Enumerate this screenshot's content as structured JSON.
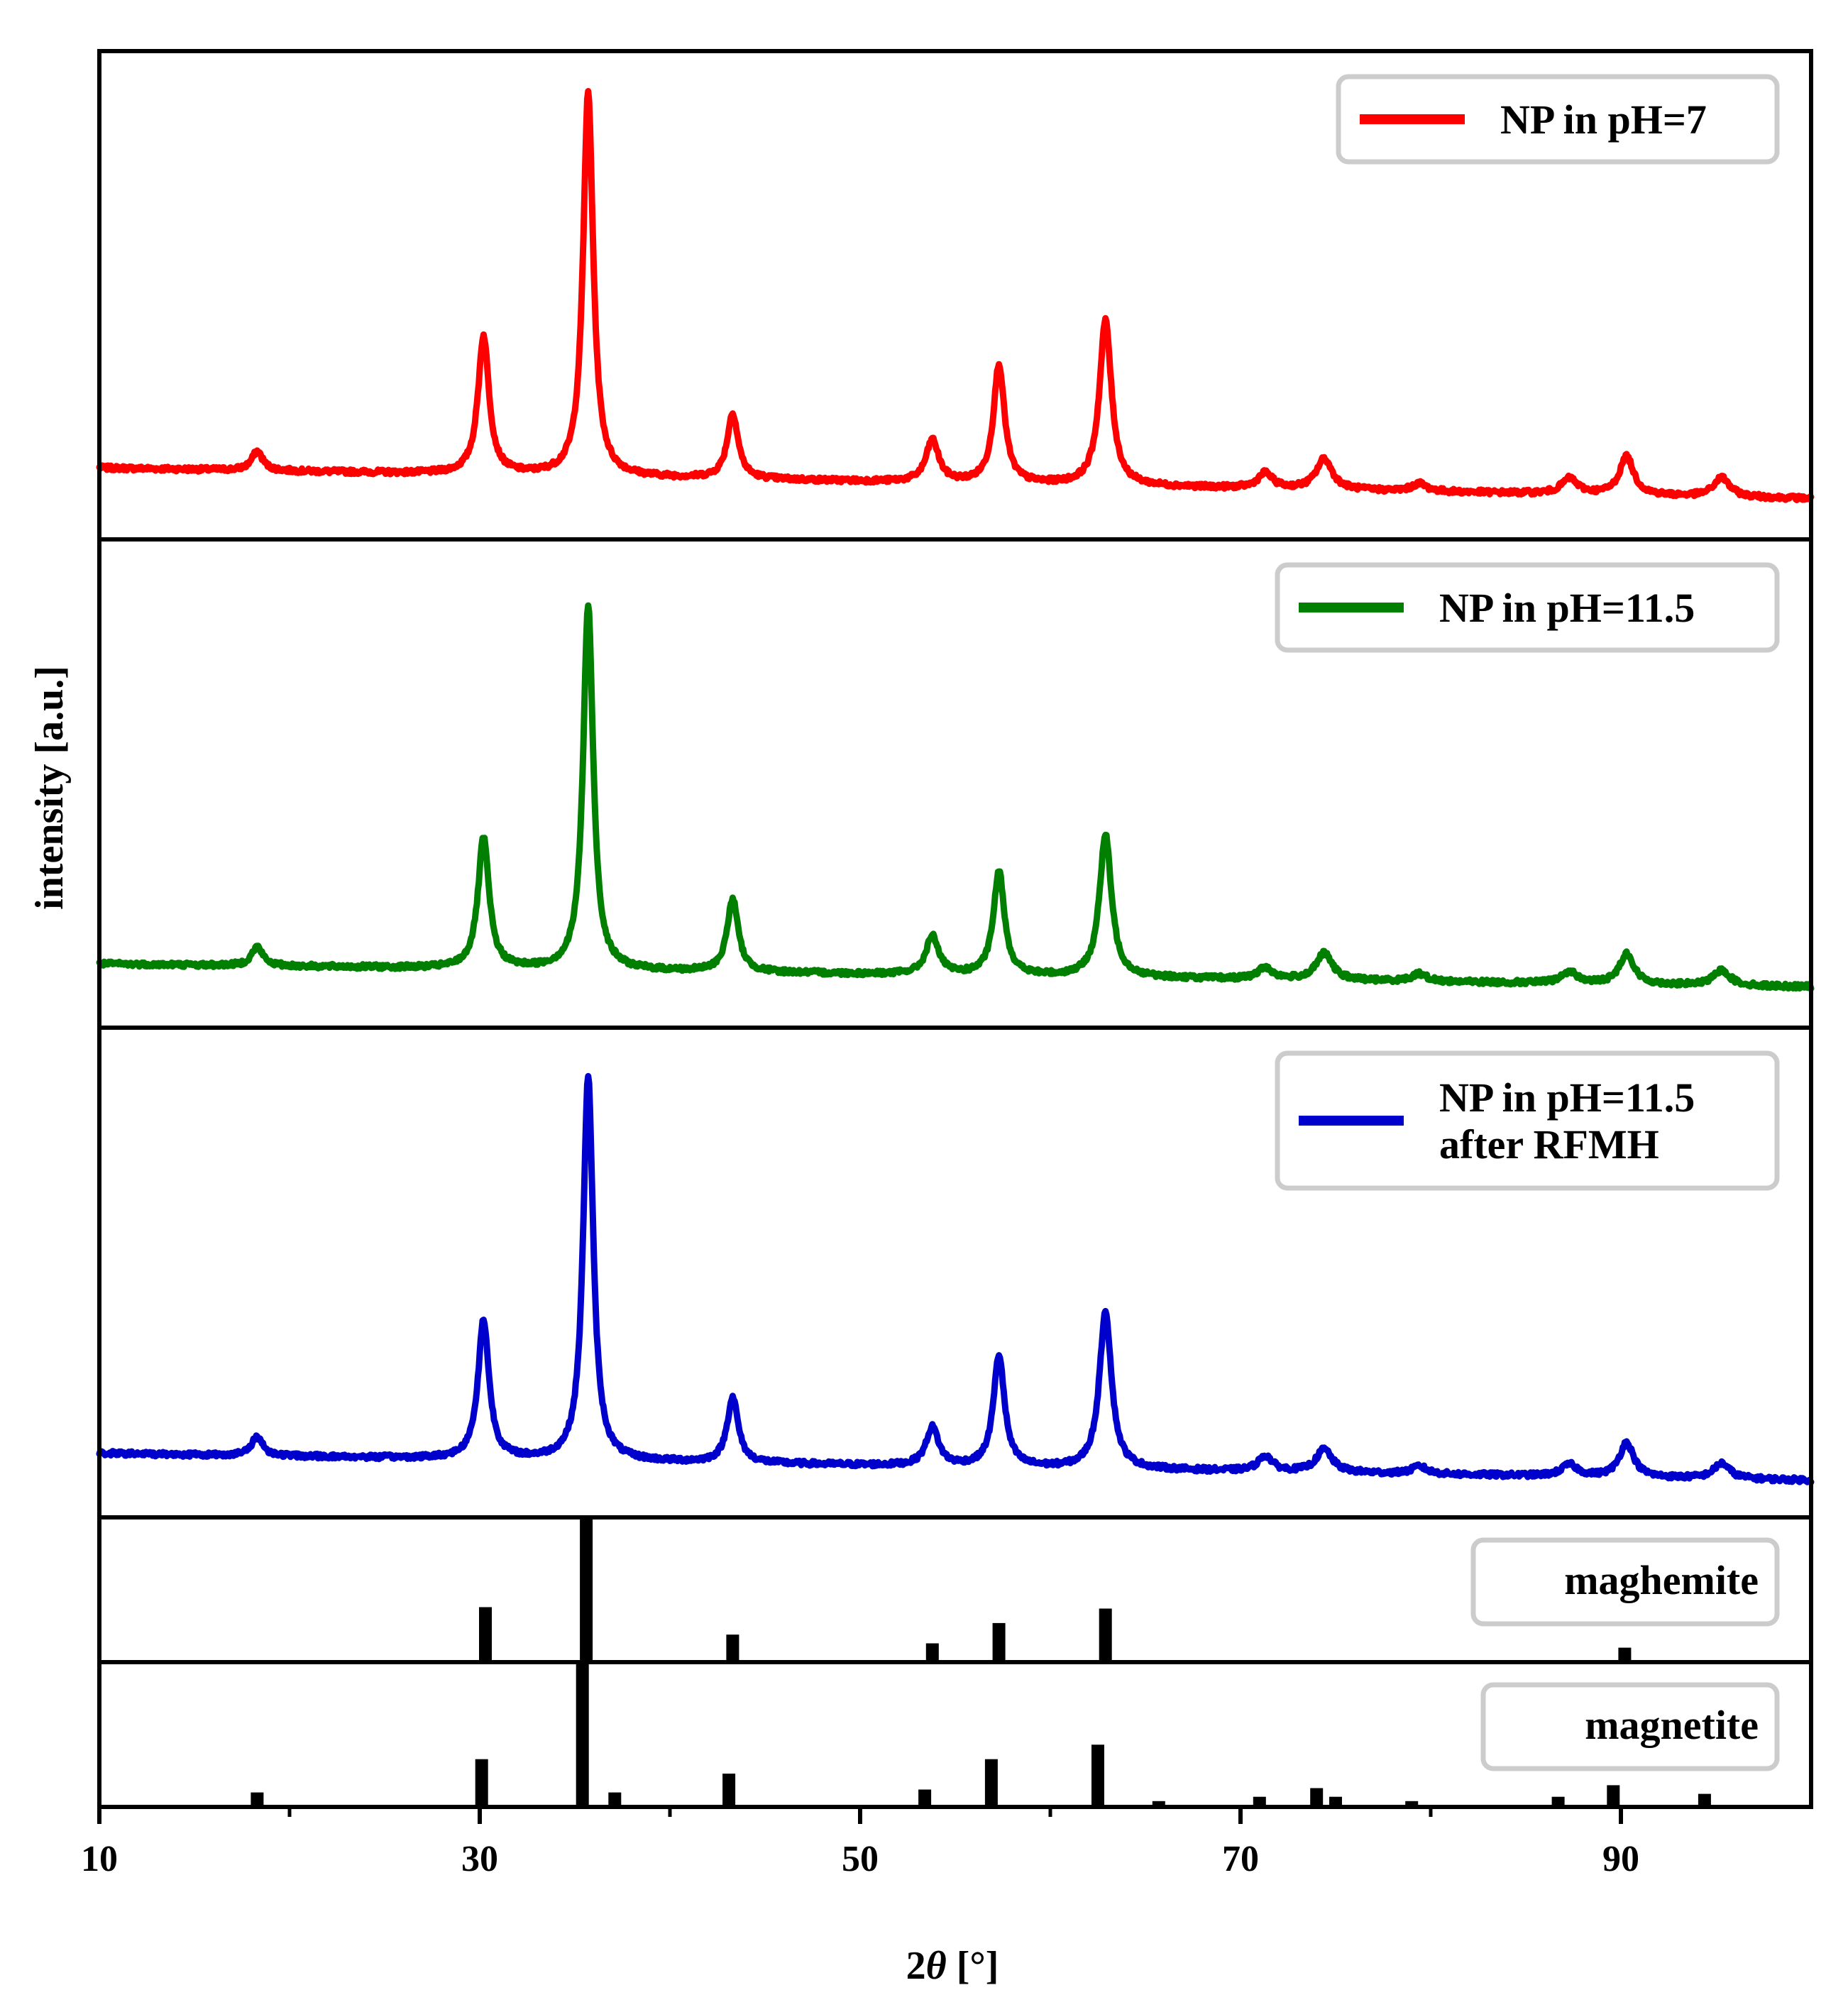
{
  "chart_data": {
    "type": "line",
    "xlabel_prefix": "2",
    "xlabel_symbol": "θ",
    "xlabel_suffix": " [°]",
    "ylabel": "intensity [a.u.]",
    "xlim": [
      10,
      100
    ],
    "xticks": [
      "10",
      "30",
      "50",
      "70",
      "90"
    ],
    "series": [
      {
        "name": "NP in pH=7",
        "legend_lines": [
          "NP in pH=7"
        ],
        "color": "#ff0000",
        "baseline_start": 0.11,
        "baseline_end": 0.03,
        "peaks": [
          [
            18.3,
            0.05,
            0.35
          ],
          [
            30.2,
            0.36,
            0.35
          ],
          [
            35.7,
            1.0,
            0.32
          ],
          [
            43.3,
            0.17,
            0.35
          ],
          [
            53.8,
            0.11,
            0.4
          ],
          [
            57.3,
            0.31,
            0.35
          ],
          [
            62.9,
            0.43,
            0.38
          ],
          [
            71.3,
            0.04,
            0.45
          ],
          [
            74.4,
            0.08,
            0.5
          ],
          [
            79.4,
            0.02,
            0.45
          ],
          [
            87.3,
            0.04,
            0.5
          ],
          [
            90.3,
            0.1,
            0.45
          ],
          [
            95.3,
            0.05,
            0.5
          ]
        ]
      },
      {
        "name": "NP in pH=11.5",
        "legend_lines": [
          "NP in pH=11.5"
        ],
        "color": "#007f00",
        "baseline_start": 0.09,
        "baseline_end": 0.03,
        "peaks": [
          [
            18.3,
            0.05,
            0.35
          ],
          [
            30.2,
            0.34,
            0.35
          ],
          [
            35.7,
            0.95,
            0.32
          ],
          [
            43.3,
            0.19,
            0.35
          ],
          [
            53.8,
            0.1,
            0.4
          ],
          [
            57.3,
            0.27,
            0.35
          ],
          [
            62.9,
            0.37,
            0.38
          ],
          [
            71.3,
            0.03,
            0.45
          ],
          [
            74.4,
            0.07,
            0.5
          ],
          [
            79.4,
            0.02,
            0.45
          ],
          [
            87.3,
            0.03,
            0.5
          ],
          [
            90.3,
            0.08,
            0.45
          ],
          [
            95.3,
            0.04,
            0.5
          ]
        ]
      },
      {
        "name": "NP in pH=11.5 after RFMH",
        "legend_lines": [
          "NP in pH=11.5",
          "after RFMH"
        ],
        "color": "#0000cc",
        "baseline_start": 0.09,
        "baseline_end": 0.02,
        "peaks": [
          [
            18.3,
            0.05,
            0.35
          ],
          [
            30.2,
            0.36,
            0.35
          ],
          [
            35.7,
            1.0,
            0.32
          ],
          [
            43.3,
            0.17,
            0.35
          ],
          [
            53.8,
            0.1,
            0.4
          ],
          [
            57.3,
            0.29,
            0.35
          ],
          [
            62.9,
            0.41,
            0.38
          ],
          [
            71.3,
            0.04,
            0.45
          ],
          [
            74.4,
            0.06,
            0.5
          ],
          [
            79.4,
            0.02,
            0.45
          ],
          [
            87.3,
            0.03,
            0.5
          ],
          [
            90.3,
            0.09,
            0.45
          ],
          [
            95.3,
            0.04,
            0.5
          ]
        ]
      }
    ],
    "references": [
      {
        "name": "maghemite",
        "peaks": [
          [
            30.3,
            0.38
          ],
          [
            35.6,
            1.0
          ],
          [
            43.3,
            0.19
          ],
          [
            53.8,
            0.13
          ],
          [
            57.3,
            0.27
          ],
          [
            62.9,
            0.37
          ],
          [
            90.2,
            0.1
          ]
        ]
      },
      {
        "name": "magnetite",
        "peaks": [
          [
            18.3,
            0.1
          ],
          [
            30.1,
            0.33
          ],
          [
            35.4,
            1.0
          ],
          [
            37.1,
            0.1
          ],
          [
            43.1,
            0.23
          ],
          [
            53.4,
            0.12
          ],
          [
            56.9,
            0.33
          ],
          [
            62.5,
            0.43
          ],
          [
            65.7,
            0.04
          ],
          [
            71.0,
            0.07
          ],
          [
            74.0,
            0.13
          ],
          [
            75.0,
            0.07
          ],
          [
            79.0,
            0.04
          ],
          [
            86.7,
            0.07
          ],
          [
            89.6,
            0.15
          ],
          [
            94.4,
            0.09
          ]
        ]
      }
    ]
  }
}
